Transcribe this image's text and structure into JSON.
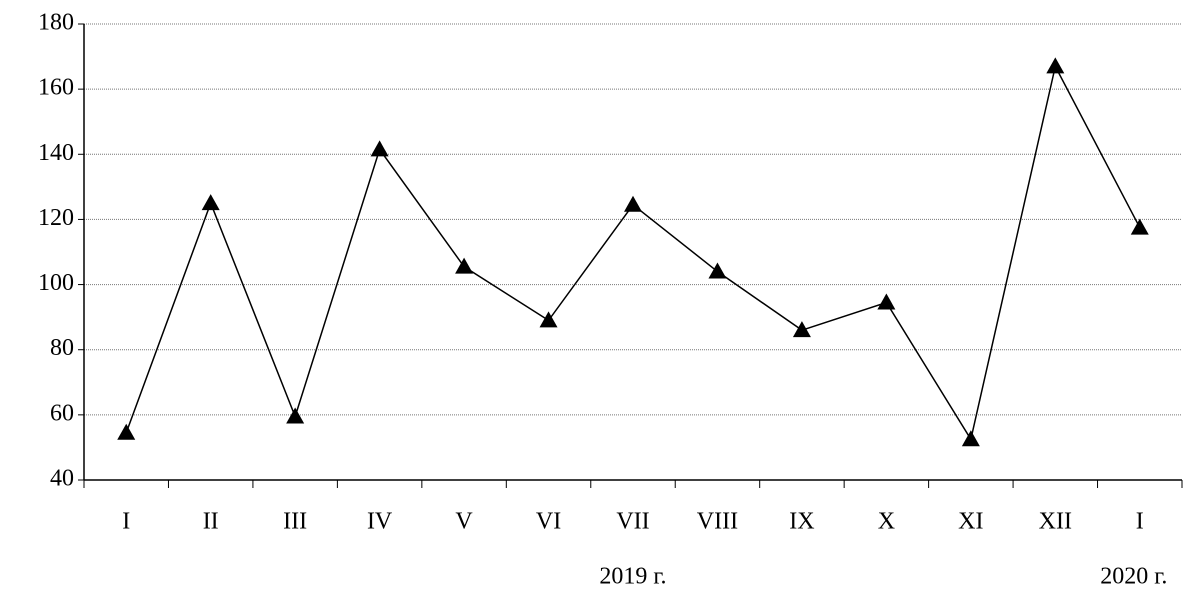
{
  "chart_data": {
    "type": "line",
    "categories": [
      "I",
      "II",
      "III",
      "IV",
      "V",
      "VI",
      "VII",
      "VIII",
      "IX",
      "X",
      "XI",
      "XII",
      "I"
    ],
    "series": [
      {
        "color": "#000000",
        "values": [
          54.5,
          125,
          59.5,
          141.5,
          105.5,
          89,
          124.5,
          104,
          86,
          94.5,
          52.5,
          167,
          117.5
        ]
      }
    ],
    "year_labels": [
      "2019 г.",
      "2020 г."
    ],
    "ylim": [
      40,
      180
    ],
    "yticks": [
      40,
      60,
      80,
      100,
      120,
      140,
      160,
      180
    ],
    "grid": true
  }
}
